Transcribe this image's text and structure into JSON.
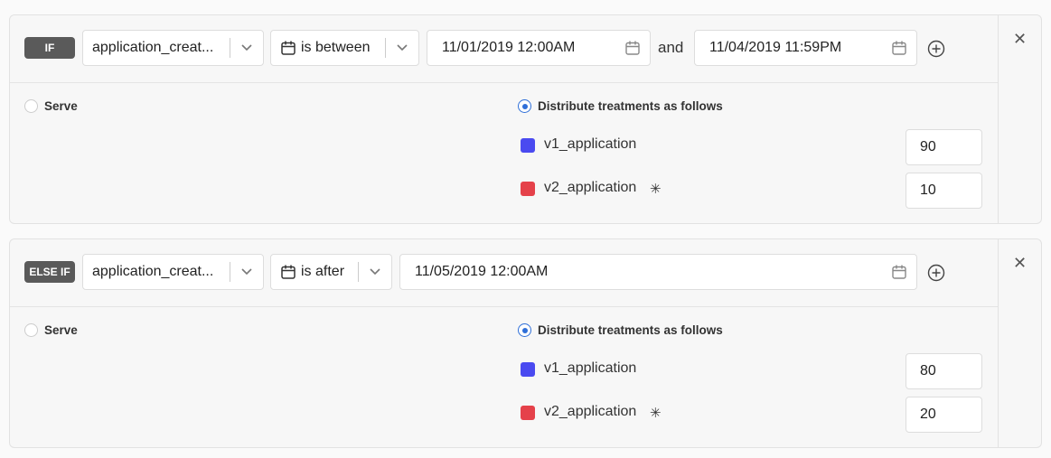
{
  "rules": [
    {
      "badge": "IF",
      "attribute": "application_creat...",
      "operator": "is between",
      "date_start": "11/01/2019 12:00AM",
      "joiner": "and",
      "date_end": "11/04/2019 11:59PM",
      "serve_label": "Serve",
      "distribute_label": "Distribute treatments as follows",
      "selected": "distribute",
      "treatments": [
        {
          "name": "v1_application",
          "color": "#4a4af0",
          "value": "90"
        },
        {
          "name": "v2_application",
          "color": "#e5414a",
          "value": "10",
          "default": true
        }
      ]
    },
    {
      "badge": "ELSE IF",
      "attribute": "application_creat...",
      "operator": "is after",
      "date_start": "11/05/2019 12:00AM",
      "serve_label": "Serve",
      "distribute_label": "Distribute treatments as follows",
      "selected": "distribute",
      "treatments": [
        {
          "name": "v1_application",
          "color": "#4a4af0",
          "value": "80"
        },
        {
          "name": "v2_application",
          "color": "#e5414a",
          "value": "20",
          "default": true
        }
      ]
    }
  ]
}
